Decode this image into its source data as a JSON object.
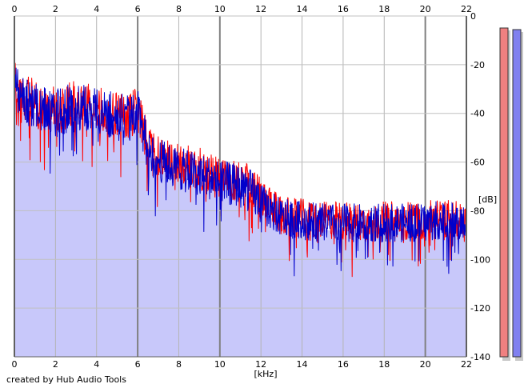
{
  "chart_data": {
    "type": "area",
    "x_axis": {
      "label": "[kHz]",
      "ticks": [
        0,
        2,
        4,
        6,
        8,
        10,
        12,
        14,
        16,
        18,
        20,
        22
      ],
      "range": [
        0,
        22
      ]
    },
    "y_axis": {
      "label": "[dB]",
      "ticks": [
        0,
        -20,
        -40,
        -60,
        -80,
        -100,
        -120,
        -140
      ],
      "range": [
        -140,
        0
      ]
    },
    "grid": true,
    "series": [
      {
        "color": "#ff0000",
        "envelope": {
          "x": [
            0,
            0.5,
            1,
            2,
            3,
            4,
            5,
            5.5,
            6,
            6.2,
            6.5,
            7,
            8,
            9,
            10,
            11,
            11.5,
            12,
            12.5,
            13,
            14,
            15,
            16,
            17,
            18,
            19,
            20,
            20.5,
            21,
            22
          ],
          "y": [
            -26,
            -34,
            -36,
            -39,
            -36,
            -39,
            -40,
            -41,
            -38,
            -45,
            -52,
            -58,
            -61,
            -63,
            -66,
            -68,
            -70,
            -75,
            -79,
            -82,
            -83,
            -84,
            -84,
            -85,
            -84,
            -84,
            -84,
            -82,
            -83,
            -85
          ]
        }
      },
      {
        "color": "#0000cc",
        "envelope": {
          "x": [
            0,
            0.5,
            1,
            2,
            3,
            4,
            5,
            5.5,
            6,
            6.2,
            6.5,
            7,
            8,
            9,
            10,
            11,
            11.5,
            12,
            12.5,
            13,
            14,
            15,
            16,
            17,
            18,
            19,
            20,
            20.5,
            21,
            22
          ],
          "y": [
            -27,
            -35,
            -37,
            -40,
            -37,
            -40,
            -41,
            -42,
            -39,
            -46,
            -53,
            -59,
            -63,
            -65,
            -68,
            -70,
            -72,
            -77,
            -80,
            -83,
            -84,
            -85,
            -85,
            -85,
            -85,
            -85,
            -85,
            -84,
            -84,
            -86
          ]
        }
      }
    ],
    "fill": {
      "color": "#c8c8fa",
      "x": [
        0,
        0.5,
        1,
        2,
        3,
        4,
        5,
        5.5,
        6,
        6.2,
        6.5,
        7,
        8,
        9,
        10,
        11,
        11.5,
        12,
        12.5,
        13,
        14,
        15,
        16,
        17,
        18,
        19,
        20,
        20.5,
        21,
        22
      ],
      "y": [
        -30,
        -38,
        -40,
        -44,
        -41,
        -44,
        -45,
        -46,
        -43,
        -50,
        -57,
        -63,
        -66,
        -68,
        -71,
        -73,
        -75,
        -80,
        -83,
        -86,
        -87,
        -88,
        -88,
        -88,
        -88,
        -88,
        -88,
        -87,
        -87,
        -89
      ]
    },
    "level_meters": [
      {
        "color": "#f08080",
        "level_db": 0
      },
      {
        "color": "#8080f0",
        "level_db": 0
      }
    ]
  },
  "footer": {
    "credit": "created by Hub Audio Tools"
  }
}
